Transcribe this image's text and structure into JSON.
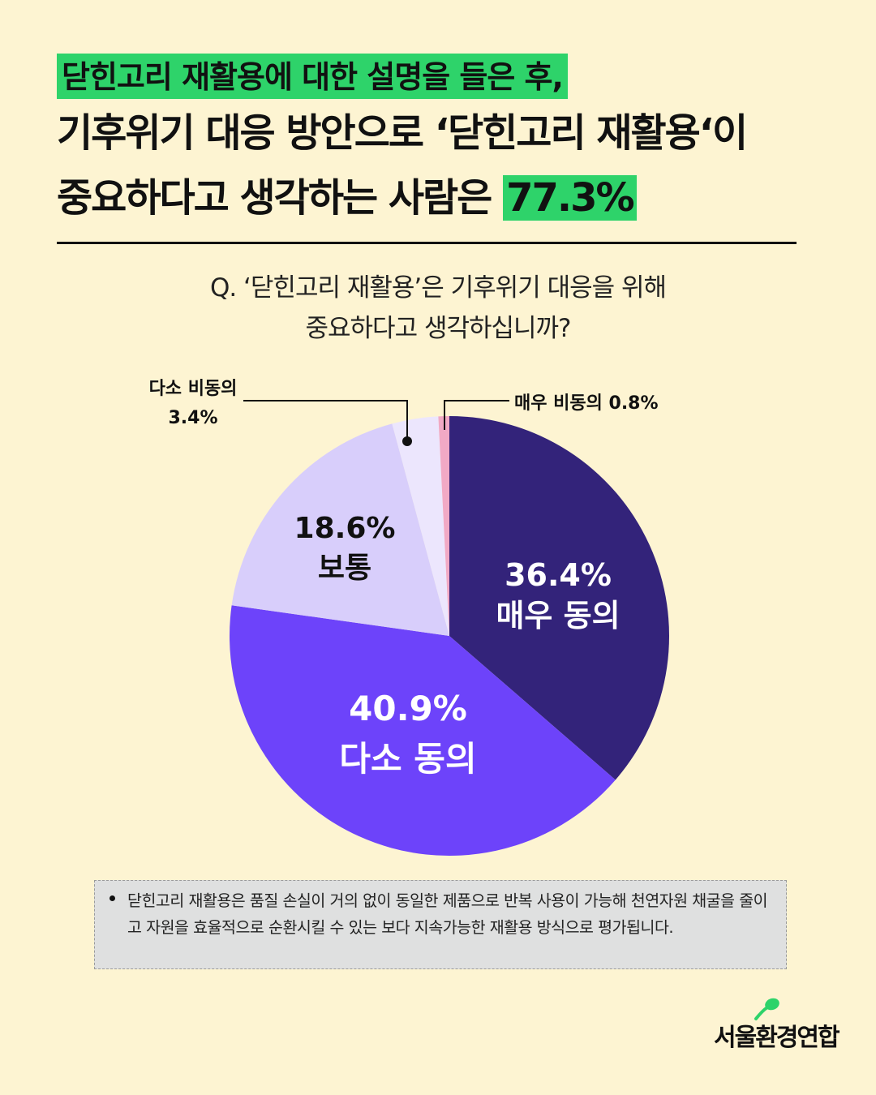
{
  "headline": {
    "line1": "닫힌고리 재활용에 대한 설명을 들은 후,",
    "line2": "기후위기 대응 방안으로 ‘닫힌고리 재활용‘이",
    "line3_prefix": "중요하다고 생각하는 사람은 ",
    "line3_highlight": "77.3%"
  },
  "question": {
    "line1": "Q. ‘닫힌고리 재활용’은 기후위기 대응을 위해",
    "line2": "중요하다고 생각하십니까?"
  },
  "chart_data": {
    "type": "pie",
    "slices": [
      {
        "label": "매우 동의",
        "value": 36.4,
        "pct_text": "36.4%",
        "color": "#33237a"
      },
      {
        "label": "다소 동의",
        "value": 40.9,
        "pct_text": "40.9%",
        "color": "#6d43fa"
      },
      {
        "label": "보통",
        "value": 18.6,
        "pct_text": "18.6%",
        "color": "#d8cefb"
      },
      {
        "label": "다소 비동의",
        "value": 3.4,
        "pct_text": "3.4%",
        "color": "#ece6fd"
      },
      {
        "label": "매우 비동의",
        "value": 0.8,
        "pct_text": "0.8%",
        "color": "#f1a9c5"
      }
    ],
    "callouts": {
      "somewhat_disagree_label": "다소 비동의",
      "somewhat_disagree_value": "3.4%",
      "strongly_disagree_text": "매우 비동의 0.8%"
    }
  },
  "note": {
    "text": "닫힌고리 재활용은 품질 손실이 거의 없이 동일한 제품으로 반복 사용이 가능해 천연자원 채굴을 줄이고 자원을 효율적으로 순환시킬 수 있는 보다 지속가능한 재활용 방식으로 평가됩니다."
  },
  "logo": {
    "text": "서울환경연합",
    "accent_color": "#2ed36a"
  }
}
